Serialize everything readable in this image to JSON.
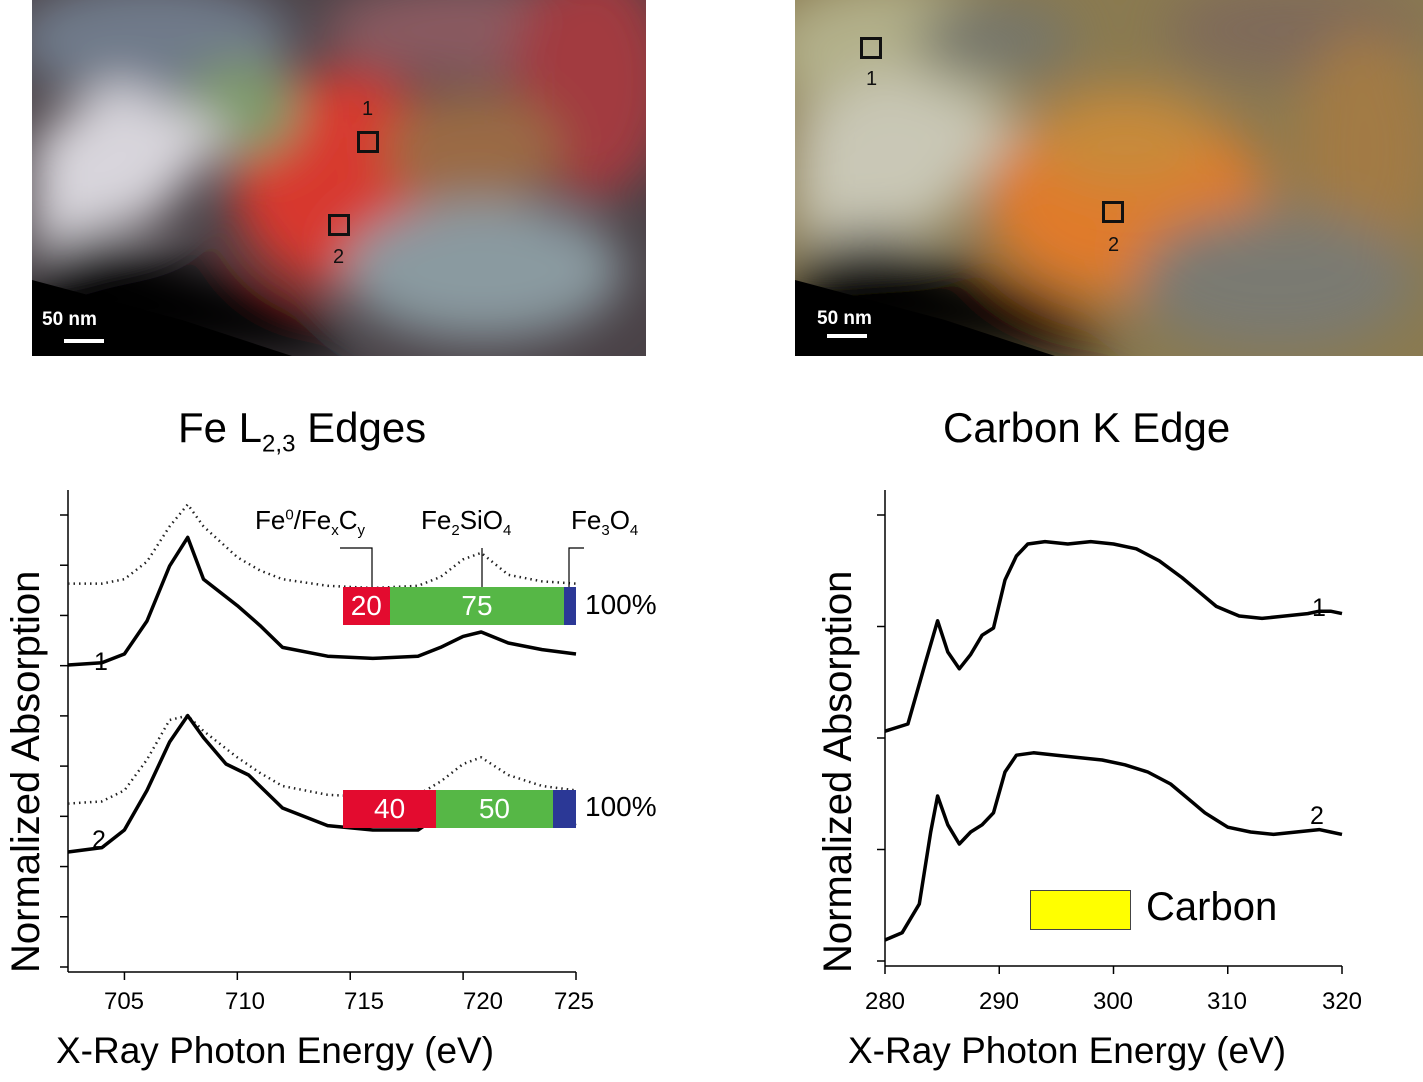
{
  "left_image": {
    "scale_label": "50 nm",
    "regions": [
      {
        "label": "1"
      },
      {
        "label": "2"
      }
    ]
  },
  "right_image": {
    "scale_label": "50 nm",
    "regions": [
      {
        "label": "1"
      },
      {
        "label": "2"
      }
    ]
  },
  "chart_data": [
    {
      "type": "line",
      "title_main": "Fe L",
      "title_sub": "2,3",
      "title_tail": " Edges",
      "xlabel": "X-Ray Photon Energy (eV)",
      "ylabel": "Normalized Absorption",
      "xlim": [
        702.5,
        725
      ],
      "xticks": [
        "705",
        "710",
        "715",
        "720",
        "725"
      ],
      "series": [
        {
          "name": "1",
          "x": [
            702.5,
            704,
            705,
            706,
            707,
            707.8,
            708.5,
            710,
            711,
            712,
            714,
            716,
            718,
            719,
            720,
            720.8,
            722,
            723.5,
            725
          ],
          "y": [
            0.25,
            0.26,
            0.3,
            0.45,
            0.7,
            0.83,
            0.64,
            0.52,
            0.43,
            0.33,
            0.29,
            0.28,
            0.29,
            0.33,
            0.38,
            0.4,
            0.35,
            0.32,
            0.3
          ]
        },
        {
          "name": "2",
          "x": [
            702.5,
            704,
            705,
            706,
            707,
            707.8,
            708.5,
            709.5,
            710.5,
            712,
            714,
            716,
            718,
            719,
            720,
            720.8,
            722,
            723.5,
            725
          ],
          "y": [
            -0.6,
            -0.58,
            -0.5,
            -0.32,
            -0.1,
            0.02,
            -0.08,
            -0.2,
            -0.25,
            -0.4,
            -0.48,
            -0.5,
            -0.5,
            -0.43,
            -0.37,
            -0.35,
            -0.4,
            -0.44,
            -0.48
          ]
        }
      ],
      "fit_series": [
        {
          "x": [
            702.5,
            704,
            705,
            706,
            707,
            707.8,
            708.5,
            710,
            711,
            712,
            714,
            716,
            718,
            719,
            720,
            720.8,
            722,
            723.5,
            725
          ],
          "y": [
            0.62,
            0.62,
            0.64,
            0.72,
            0.88,
            0.98,
            0.88,
            0.74,
            0.68,
            0.64,
            0.61,
            0.6,
            0.61,
            0.65,
            0.73,
            0.76,
            0.66,
            0.63,
            0.62
          ]
        },
        {
          "x": [
            702.5,
            704,
            705,
            706,
            707,
            707.8,
            708.5,
            710,
            711,
            712,
            714,
            716,
            718,
            719,
            720,
            720.8,
            722,
            723.5,
            725
          ],
          "y": [
            -0.38,
            -0.37,
            -0.32,
            -0.18,
            0.0,
            0.02,
            -0.05,
            -0.17,
            -0.24,
            -0.3,
            -0.34,
            -0.35,
            -0.34,
            -0.28,
            -0.2,
            -0.17,
            -0.25,
            -0.3,
            -0.32
          ]
        }
      ],
      "phases": [
        {
          "name": "Fe",
          "sup": "0",
          "tail": "/Fe",
          "sub1": "x",
          "mid": "C",
          "sub2": "y"
        },
        {
          "name": "Fe",
          "sub1": "2",
          "mid": "SiO",
          "sub2": "4"
        },
        {
          "name": "Fe",
          "sub1": "3",
          "mid": "O",
          "sub2": "4"
        }
      ],
      "compositions": [
        {
          "curve": "1",
          "values": [
            20,
            75,
            5
          ],
          "labels": [
            "20",
            "75",
            ""
          ],
          "total": "100%"
        },
        {
          "curve": "2",
          "values": [
            40,
            50,
            10
          ],
          "labels": [
            "40",
            "50",
            ""
          ],
          "total": "100%"
        }
      ],
      "colors": [
        "#e30b2f",
        "#56b746",
        "#2b3896"
      ]
    },
    {
      "type": "line",
      "title": "Carbon K Edge",
      "xlabel": "X-Ray Photon Energy (eV)",
      "ylabel": "Normalized Absorption",
      "xlim": [
        280,
        320
      ],
      "xticks": [
        "280",
        "290",
        "300",
        "310",
        "320"
      ],
      "series": [
        {
          "name": "1",
          "x": [
            280,
            282,
            283.5,
            284.6,
            285.5,
            286.5,
            287.5,
            288.5,
            289.5,
            290.5,
            291.5,
            292.5,
            294,
            296,
            298,
            300,
            302,
            304,
            306,
            308,
            309,
            310,
            311,
            313,
            315,
            317,
            318,
            319,
            320
          ],
          "y": [
            0.12,
            0.15,
            0.4,
            0.58,
            0.45,
            0.38,
            0.44,
            0.52,
            0.55,
            0.75,
            0.85,
            0.9,
            0.91,
            0.9,
            0.91,
            0.9,
            0.88,
            0.83,
            0.76,
            0.68,
            0.64,
            0.62,
            0.6,
            0.59,
            0.6,
            0.61,
            0.62,
            0.62,
            0.61
          ]
        },
        {
          "name": "2",
          "x": [
            280,
            281.5,
            283,
            284,
            284.6,
            285.5,
            286.5,
            287.5,
            288.5,
            289.5,
            290.5,
            291.5,
            293,
            295,
            297,
            299,
            301,
            303,
            305,
            307,
            308,
            309,
            310,
            312,
            314,
            316,
            318,
            319,
            320
          ],
          "y": [
            -0.75,
            -0.72,
            -0.6,
            -0.3,
            -0.15,
            -0.27,
            -0.35,
            -0.3,
            -0.27,
            -0.22,
            -0.05,
            0.02,
            0.03,
            0.02,
            0.01,
            0.0,
            -0.02,
            -0.05,
            -0.1,
            -0.18,
            -0.22,
            -0.25,
            -0.28,
            -0.3,
            -0.31,
            -0.3,
            -0.29,
            -0.3,
            -0.31
          ]
        }
      ],
      "legend": [
        {
          "label": "Carbon",
          "color": "#ffff00"
        }
      ]
    }
  ]
}
